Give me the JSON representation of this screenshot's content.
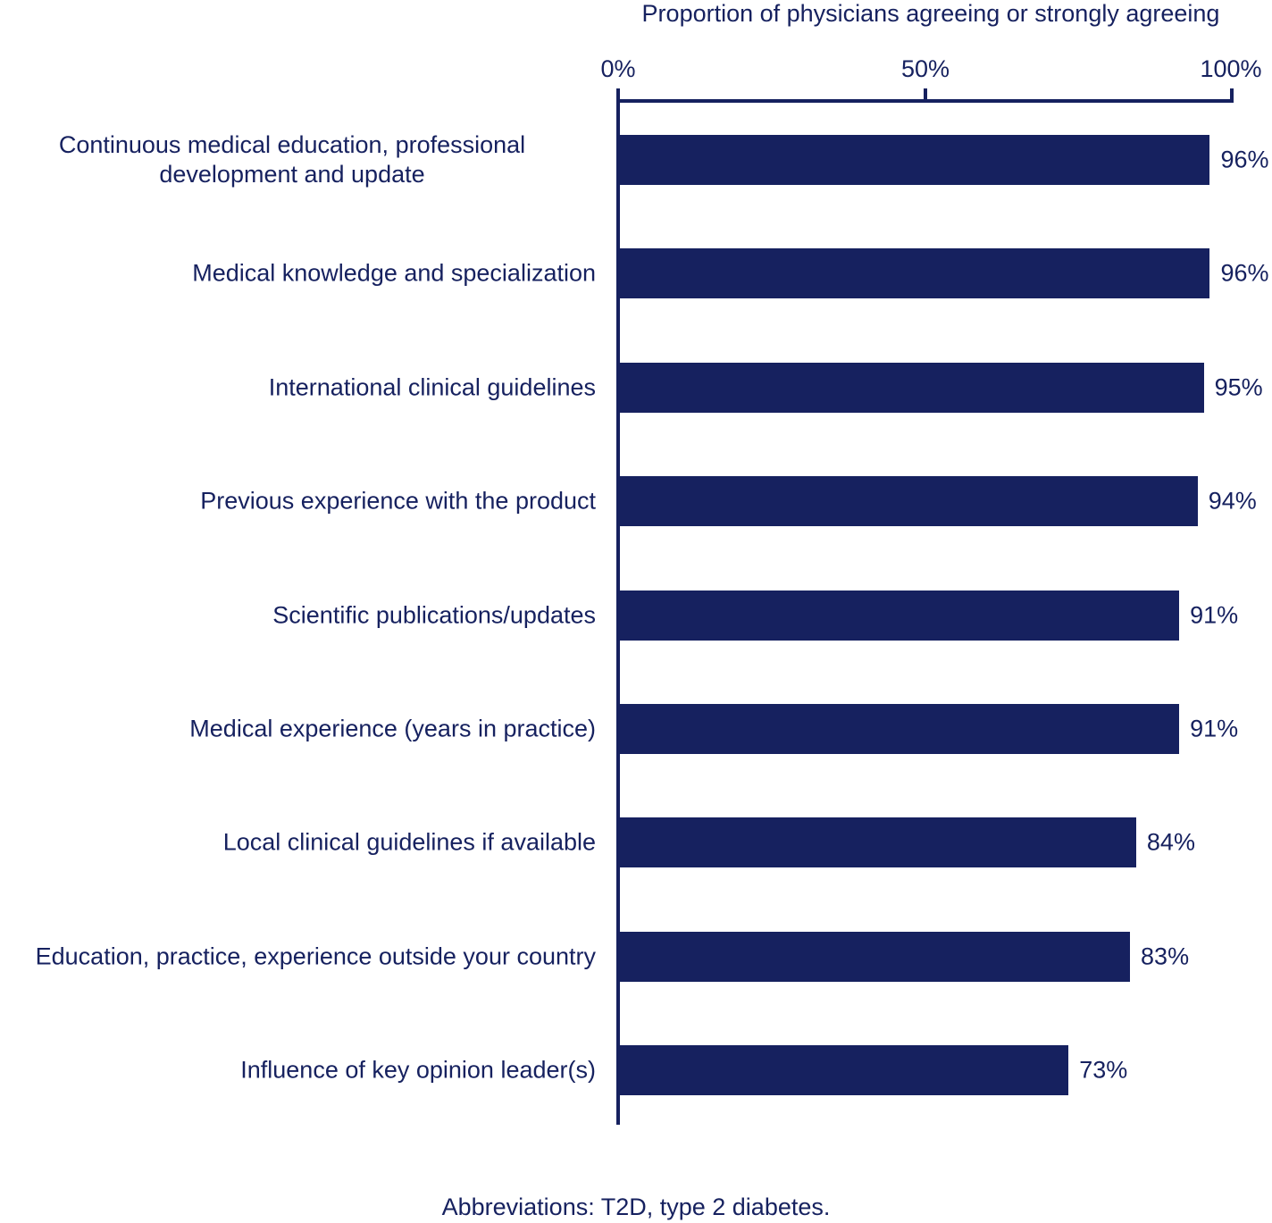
{
  "chart_data": {
    "type": "bar",
    "orientation": "horizontal",
    "title": "Proportion of physicians agreeing or strongly agreeing",
    "xlabel": "Proportion of physicians agreeing or strongly agreeing",
    "ylabel": "",
    "xlim": [
      0,
      100
    ],
    "x_ticks": [
      "0%",
      "50%",
      "100%"
    ],
    "grid": false,
    "bar_color": "#16215f",
    "categories": [
      "Continuous medical education, professional development and update",
      "Medical knowledge and specialization",
      "International clinical guidelines",
      "Previous experience with the product",
      "Scientific publications/updates",
      "Medical experience (years in practice)",
      "Local clinical guidelines if available",
      "Education, practice, experience outside your country",
      "Influence of key opinion leader(s)"
    ],
    "values": [
      96,
      96,
      95,
      94,
      91,
      91,
      84,
      83,
      73
    ],
    "value_labels": [
      "96%",
      "96%",
      "95%",
      "94%",
      "91%",
      "91%",
      "84%",
      "83%",
      "73%"
    ],
    "footnote": "Abbreviations: T2D, type 2 diabetes."
  },
  "rows": [
    {
      "label_line1": "Continuous medical education, professional",
      "label_line2": "development and update",
      "value": 96,
      "value_label": "96%"
    },
    {
      "label_line1": "Medical knowledge and specialization",
      "label_line2": "",
      "value": 96,
      "value_label": "96%"
    },
    {
      "label_line1": "International clinical guidelines",
      "label_line2": "",
      "value": 95,
      "value_label": "95%"
    },
    {
      "label_line1": "Previous experience with the product",
      "label_line2": "",
      "value": 94,
      "value_label": "94%"
    },
    {
      "label_line1": "Scientific publications/updates",
      "label_line2": "",
      "value": 91,
      "value_label": "91%"
    },
    {
      "label_line1": "Medical experience (years in practice)",
      "label_line2": "",
      "value": 91,
      "value_label": "91%"
    },
    {
      "label_line1": "Local clinical guidelines if available",
      "label_line2": "",
      "value": 84,
      "value_label": "84%"
    },
    {
      "label_line1": "Education, practice, experience outside your country",
      "label_line2": "",
      "value": 83,
      "value_label": "83%"
    },
    {
      "label_line1": "Influence of key opinion leader(s)",
      "label_line2": "",
      "value": 73,
      "value_label": "73%"
    }
  ],
  "axis": {
    "title": "Proportion of physicians agreeing or strongly agreeing",
    "ticks": [
      "0%",
      "50%",
      "100%"
    ]
  },
  "footer": {
    "text": "Abbreviations: T2D, type 2 diabetes."
  }
}
